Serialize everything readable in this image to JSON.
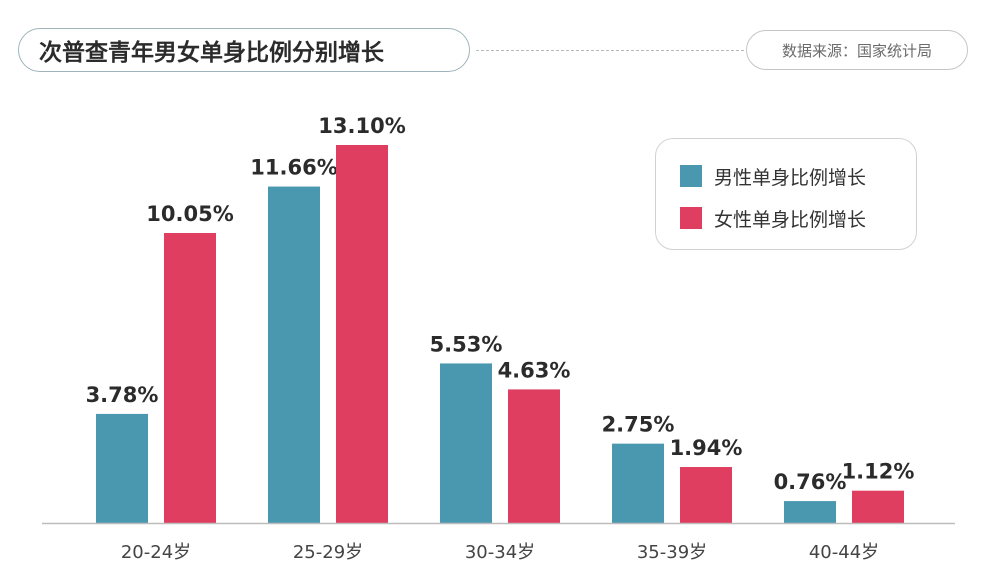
{
  "header": {
    "title": "次普查青年男女单身比例分别增长",
    "source": "数据来源：国家统计局"
  },
  "colors": {
    "male": "#4a98b0",
    "female": "#e03e60",
    "axis": "#bdbdbd",
    "label": "#2b2b2b",
    "tick": "#444444"
  },
  "chart_data": {
    "type": "bar",
    "categories": [
      "20-24岁",
      "25-29岁",
      "30-34岁",
      "35-39岁",
      "40-44岁"
    ],
    "series": [
      {
        "name": "男性单身比例增长",
        "values": [
          3.78,
          11.66,
          5.53,
          2.75,
          0.76
        ],
        "labels": [
          "3.78%",
          "11.66%",
          "5.53%",
          "2.75%",
          "0.76%"
        ]
      },
      {
        "name": "女性单身比例增长",
        "values": [
          10.05,
          13.1,
          4.63,
          1.94,
          1.12
        ],
        "labels": [
          "10.05%",
          "13.10%",
          "4.63%",
          "1.94%",
          "1.12%"
        ]
      }
    ],
    "title": "次普查青年男女单身比例分别增长",
    "ylim": [
      0,
      13.1
    ],
    "grid": false,
    "legend": "top-right"
  }
}
